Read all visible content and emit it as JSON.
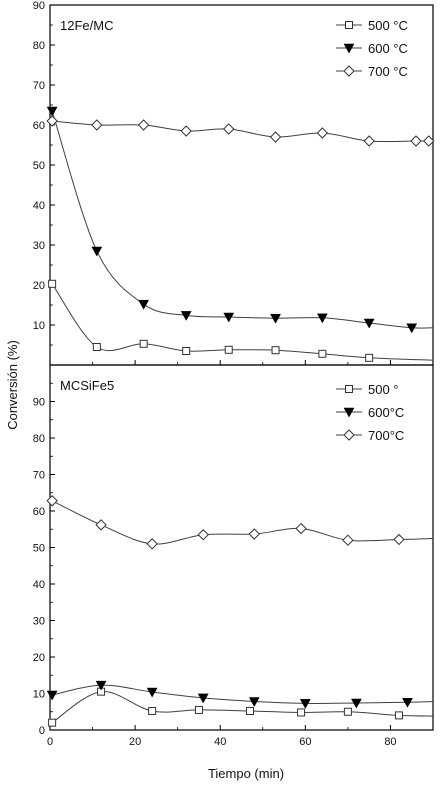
{
  "colors": {
    "line": "#404040",
    "marker_stroke": "#333333",
    "frame": "#000000",
    "background": "#ffffff"
  },
  "ylabel": "Conversión (%)",
  "xlabel": "Tiempo (min)",
  "chart_data": [
    {
      "type": "line",
      "title": "12Fe/MC",
      "xlim": [
        0,
        90
      ],
      "ylim": [
        0,
        90
      ],
      "x_ticks": [],
      "y_ticks": [
        10,
        20,
        30,
        40,
        50,
        60,
        70,
        80,
        90
      ],
      "legend_position": "top-right",
      "series": [
        {
          "name": "500 °C",
          "marker": "square",
          "x": [
            0.5,
            11,
            22,
            32,
            42,
            53,
            64,
            75,
            90
          ],
          "y": [
            20.3,
            4.5,
            5.3,
            3.5,
            3.8,
            3.7,
            2.8,
            1.8,
            1.2
          ]
        },
        {
          "name": "600 °C",
          "marker": "triangle-down",
          "x": [
            0.5,
            11,
            22,
            32,
            42,
            53,
            64,
            75,
            85,
            90
          ],
          "y": [
            63.5,
            28.5,
            15.2,
            12.4,
            12.0,
            11.7,
            11.8,
            10.5,
            9.3,
            9.3
          ]
        },
        {
          "name": "700 °C",
          "marker": "diamond",
          "x": [
            0.5,
            11,
            22,
            32,
            42,
            53,
            64,
            75,
            86,
            89
          ],
          "y": [
            61.0,
            60.0,
            60.0,
            58.5,
            59.0,
            57.0,
            58.0,
            56.0,
            56.0,
            56.0
          ]
        }
      ]
    },
    {
      "type": "line",
      "title": "MCSiFe5",
      "xlim": [
        0,
        90
      ],
      "ylim": [
        0,
        100
      ],
      "x_ticks": [
        0,
        20,
        40,
        60,
        80
      ],
      "y_ticks": [
        0,
        10,
        20,
        30,
        40,
        50,
        60,
        70,
        80,
        90
      ],
      "legend_position": "top-right",
      "series": [
        {
          "name": "500 °",
          "marker": "square",
          "x": [
            0.5,
            12,
            24,
            35,
            47,
            59,
            70,
            82,
            90
          ],
          "y": [
            2.0,
            10.5,
            5.2,
            5.5,
            5.2,
            4.8,
            5.0,
            4.0,
            3.8
          ]
        },
        {
          "name": "600°C",
          "marker": "triangle-down",
          "x": [
            0.5,
            12,
            24,
            36,
            48,
            60,
            72,
            84,
            90
          ],
          "y": [
            9.6,
            12.3,
            10.4,
            8.8,
            7.8,
            7.3,
            7.4,
            7.6,
            7.8
          ]
        },
        {
          "name": "700°C",
          "marker": "diamond",
          "x": [
            0.5,
            12,
            24,
            36,
            48,
            59,
            70,
            82,
            90
          ],
          "y": [
            62.8,
            56.2,
            51.0,
            53.5,
            53.7,
            55.2,
            52.0,
            52.2,
            52.5
          ]
        }
      ]
    }
  ]
}
